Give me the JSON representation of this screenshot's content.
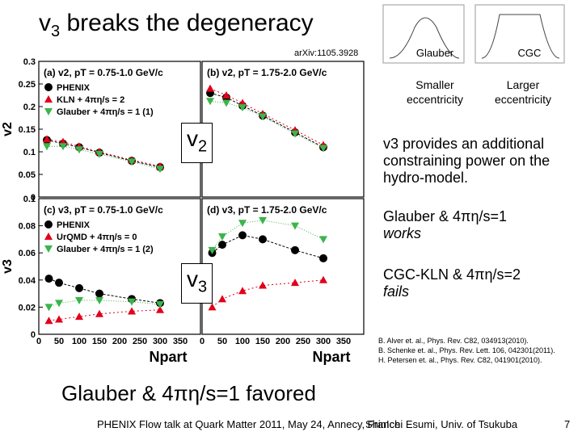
{
  "slide": {
    "title_main": "v",
    "title_sub": "3",
    "title_rest": " breaks the degeneracy",
    "arxiv": "arXiv:1105.3928",
    "favored": "Glauber & 4πη/s=1 favored",
    "footer_left": "PHENIX Flow talk at Quark Matter 2011, May 24, Annecy, France",
    "footer_mid": "ShinIchi Esumi, Univ. of Tsukuba",
    "page_number": "7"
  },
  "inset": {
    "left_label": "Glauber",
    "right_label": "CGC",
    "left_caption": "Smaller eccentricity",
    "right_caption": "Larger eccentricity"
  },
  "side": {
    "p1": "v3 provides an additional constraining power on the hydro-model.",
    "p2_a": "Glauber & 4πη/s=1",
    "p2_b": "works",
    "p3_a": "CGC-KLN & 4πη/s=2",
    "p3_b": "fails"
  },
  "overlay": {
    "v2_main": "v",
    "v2_sub": "2",
    "v3_main": "v",
    "v3_sub": "3"
  },
  "refs": [
    "B. Alver et. al., Phys. Rev. C82, 034913(2010).",
    "B. Schenke et. al., Phys. Rev. Lett. 106, 042301(2011).",
    "H. Petersen et. al., Phys. Rev. C82, 041901(2010)."
  ],
  "colors": {
    "phenix": "#000000",
    "kln": "#e0001a",
    "glauber": "#3cb44b",
    "urqmd": "#2a3fbf",
    "glauber2": "#6a7fd8"
  },
  "chart_data": [
    {
      "type": "scatter",
      "panel": "(a) v2, pT = 0.75-1.0 GeV/c",
      "ylabel": "v2",
      "ylim": [
        0,
        0.3
      ],
      "yticks": [
        "0",
        "0.05",
        "0.1",
        "0.15",
        "0.2",
        "0.25",
        "0.3"
      ],
      "xlim": [
        0,
        400
      ],
      "legend": [
        "PHENIX",
        "KLN + 4πη/s = 2",
        "Glauber + 4πη/s = 1 (1)"
      ],
      "series": [
        {
          "name": "PHENIX",
          "x": [
            20,
            60,
            100,
            150,
            230,
            300
          ],
          "values": [
            0.126,
            0.118,
            0.11,
            0.098,
            0.08,
            0.066
          ]
        },
        {
          "name": "KLN + 4πη/s = 2",
          "x": [
            20,
            60,
            100,
            150,
            230,
            300
          ],
          "values": [
            0.128,
            0.122,
            0.112,
            0.1,
            0.082,
            0.068
          ]
        },
        {
          "name": "Glauber + 4πη/s = 1 (1)",
          "x": [
            20,
            60,
            100,
            150,
            230,
            300
          ],
          "values": [
            0.112,
            0.112,
            0.105,
            0.095,
            0.078,
            0.062
          ]
        }
      ]
    },
    {
      "type": "scatter",
      "panel": "(b) v2, pT = 1.75-2.0 GeV/c",
      "ylim": [
        0,
        0.3
      ],
      "xlim": [
        0,
        400
      ],
      "series": [
        {
          "name": "PHENIX",
          "x": [
            20,
            60,
            100,
            150,
            230,
            300
          ],
          "values": [
            0.23,
            0.22,
            0.202,
            0.18,
            0.143,
            0.11
          ]
        },
        {
          "name": "KLN + 4πη/s = 2",
          "x": [
            20,
            60,
            100,
            150,
            230,
            300
          ],
          "values": [
            0.24,
            0.225,
            0.208,
            0.184,
            0.148,
            0.115
          ]
        },
        {
          "name": "Glauber + 4πη/s = 1 (1)",
          "x": [
            20,
            60,
            100,
            150,
            230,
            300
          ],
          "values": [
            0.212,
            0.208,
            0.198,
            0.178,
            0.14,
            0.108
          ]
        }
      ]
    },
    {
      "type": "scatter",
      "panel": "(c) v3, pT = 0.75-1.0 GeV/c",
      "ylabel": "v3",
      "ylim": [
        0,
        0.1
      ],
      "yticks": [
        "0",
        "0.02",
        "0.04",
        "0.06",
        "0.08",
        "0.1"
      ],
      "xlim": [
        0,
        400
      ],
      "xticks": [
        "0",
        "50",
        "100",
        "150",
        "200",
        "250",
        "300",
        "350"
      ],
      "xlabel": "Npart",
      "legend": [
        "PHENIX",
        "UrQMD + 4πη/s = 0",
        "Glauber + 4πη/s = 1 (2)"
      ],
      "series": [
        {
          "name": "PHENIX",
          "x": [
            25,
            50,
            100,
            150,
            230,
            300
          ],
          "values": [
            0.041,
            0.038,
            0.034,
            0.03,
            0.026,
            0.023
          ]
        },
        {
          "name": "KLN + 4πη/s = 2",
          "x": [
            25,
            50,
            100,
            150,
            230,
            300
          ],
          "values": [
            0.01,
            0.011,
            0.013,
            0.015,
            0.017,
            0.018
          ]
        },
        {
          "name": "Glauber + 4πη/s = 1 (1)",
          "x": [
            25,
            50,
            100,
            150,
            230,
            300
          ],
          "values": [
            0.02,
            0.023,
            0.025,
            0.025,
            0.024,
            0.022
          ]
        }
      ]
    },
    {
      "type": "scatter",
      "panel": "(d) v3, pT = 1.75-2.0 GeV/c",
      "ylim": [
        0,
        0.1
      ],
      "xlim": [
        0,
        400
      ],
      "xlabel": "Npart",
      "series": [
        {
          "name": "PHENIX",
          "x": [
            25,
            50,
            100,
            150,
            230,
            300
          ],
          "values": [
            0.06,
            0.066,
            0.073,
            0.07,
            0.062,
            0.056
          ]
        },
        {
          "name": "KLN + 4πη/s = 2",
          "x": [
            25,
            50,
            100,
            150,
            230,
            300
          ],
          "values": [
            0.02,
            0.026,
            0.032,
            0.036,
            0.038,
            0.04
          ]
        },
        {
          "name": "Glauber + 4πη/s = 1 (1)",
          "x": [
            25,
            50,
            100,
            150,
            230,
            300
          ],
          "values": [
            0.062,
            0.072,
            0.082,
            0.084,
            0.08,
            0.07
          ]
        }
      ]
    }
  ]
}
